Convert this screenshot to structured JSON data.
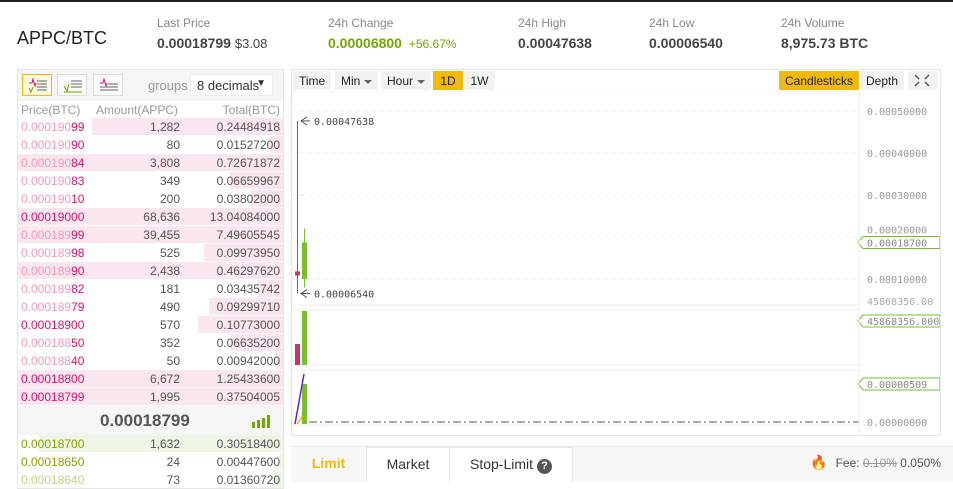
{
  "header": {
    "pair": "APPC/BTC",
    "stats": [
      {
        "label": "Last Price",
        "value": "0.00018799",
        "sub": "$3.08"
      },
      {
        "label": "24h Change",
        "value": "0.00006800",
        "sub": "+56.67%"
      },
      {
        "label": "24h High",
        "value": "0.00047638"
      },
      {
        "label": "24h Low",
        "value": "0.00006540"
      },
      {
        "label": "24h Volume",
        "value": "8,975.73 BTC"
      }
    ]
  },
  "orderbook": {
    "groups_label": "groups",
    "decimals": "8 decimals",
    "columns": [
      "Price(BTC)",
      "Amount(APPC)",
      "Total(BTC)"
    ],
    "asks": [
      {
        "pa": "0.000190",
        "pb": "99",
        "amount": "1,282",
        "total": "0.24484918",
        "depth": 0.72
      },
      {
        "pa": "0.000190",
        "pb": "90",
        "amount": "80",
        "total": "0.01527200",
        "depth": 0.05
      },
      {
        "pa": "0.000190",
        "pb": "84",
        "amount": "3,808",
        "total": "0.72671872",
        "depth": 1
      },
      {
        "pa": "0.000190",
        "pb": "83",
        "amount": "349",
        "total": "0.06659967",
        "depth": 0.2
      },
      {
        "pa": "0.000190",
        "pb": "10",
        "amount": "200",
        "total": "0.03802000",
        "depth": 0.12
      },
      {
        "pa": "",
        "pb": "0.00019000",
        "amount": "68,636",
        "total": "13.04084000",
        "depth": 1
      },
      {
        "pa": "0.000189",
        "pb": "99",
        "amount": "39,455",
        "total": "7.49605545",
        "depth": 1
      },
      {
        "pa": "0.000189",
        "pb": "98",
        "amount": "525",
        "total": "0.09973950",
        "depth": 0.3
      },
      {
        "pa": "0.000189",
        "pb": "90",
        "amount": "2,438",
        "total": "0.46297620",
        "depth": 1
      },
      {
        "pa": "0.000189",
        "pb": "82",
        "amount": "181",
        "total": "0.03435742",
        "depth": 0.1
      },
      {
        "pa": "0.000189",
        "pb": "79",
        "amount": "490",
        "total": "0.09299710",
        "depth": 0.28
      },
      {
        "pa": "",
        "pb": "0.00018900",
        "amount": "570",
        "total": "0.10773000",
        "depth": 0.32
      },
      {
        "pa": "0.000188",
        "pb": "50",
        "amount": "352",
        "total": "0.06635200",
        "depth": 0.2
      },
      {
        "pa": "0.000188",
        "pb": "40",
        "amount": "50",
        "total": "0.00942000",
        "depth": 0.03
      },
      {
        "pa": "",
        "pb": "0.00018800",
        "amount": "6,672",
        "total": "1.25433600",
        "depth": 1
      },
      {
        "pa": "",
        "pb": "0.00018799",
        "amount": "1,995",
        "total": "0.37504005",
        "depth": 1
      }
    ],
    "mid_price": "0.00018799",
    "bids": [
      {
        "price": "0.00018700",
        "amount": "1,632",
        "total": "0.30518400",
        "depth": 0.92
      },
      {
        "price": "0.00018650",
        "amount": "24",
        "total": "0.00447600",
        "depth": 0.01
      },
      {
        "price": "0.00018640",
        "amount": "73",
        "total": "0.01360720",
        "depth": 0.04
      }
    ]
  },
  "chart": {
    "intervals": [
      "Time",
      "Min",
      "Hour",
      "1D",
      "1W"
    ],
    "active_interval": "1D",
    "views": [
      "Candlesticks",
      "Depth"
    ],
    "active_view": "Candlesticks",
    "y_ticks": [
      "0.00050000",
      "0.00040000",
      "0.00030000",
      "0.00020000",
      "0.00010000"
    ],
    "high_label": "0.00047638",
    "low_label": "0.00006540",
    "last_label": "0.00018700",
    "volume_tick": "45868356.00",
    "volume_label": "45868356.000",
    "ind_label": "0.00000509",
    "ind_zero": "0.00000000",
    "candles": [
      {
        "open": 0.00011,
        "close": 0.000118,
        "high": 0.00047638,
        "low": 6.54e-05,
        "color": "#d0306e"
      },
      {
        "open": 0.0001,
        "close": 0.000187,
        "high": 0.00022,
        "low": 8e-05,
        "color": "#76c12a"
      }
    ],
    "accent": "#f0b90b"
  },
  "trade": {
    "tabs": [
      "Limit",
      "Market",
      "Stop-Limit"
    ],
    "help": "?",
    "fee_label": "Fee:",
    "fee_old": "0.10%",
    "fee_new": "0.050%"
  }
}
